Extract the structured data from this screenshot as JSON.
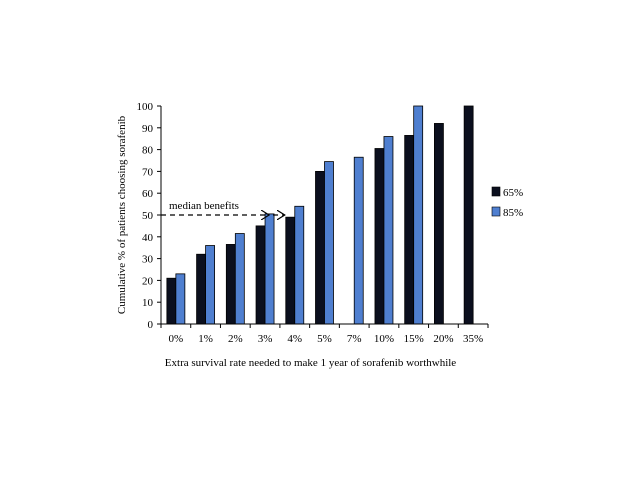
{
  "chart_data": {
    "type": "bar",
    "xlabel": "Extra survival rate needed to make 1 year of sorafenib worthwhile",
    "ylabel": "Cumulative % of patients choosing sorafenib",
    "ylim": [
      0,
      100
    ],
    "yticks": [
      0,
      10,
      20,
      30,
      40,
      50,
      60,
      70,
      80,
      90,
      100
    ],
    "categories": [
      "0%",
      "1%",
      "2%",
      "3%",
      "4%",
      "5%",
      "7%",
      "10%",
      "15%",
      "20%",
      "35%"
    ],
    "series": [
      {
        "name": "65%",
        "color": "#0b0f1e",
        "values": [
          21,
          32,
          36.5,
          45,
          49,
          70,
          null,
          80.5,
          86.5,
          92,
          100
        ]
      },
      {
        "name": "85%",
        "color": "#4f7fd0",
        "values": [
          23,
          36,
          41.5,
          50.5,
          54,
          74.5,
          76.5,
          86,
          100,
          null,
          null
        ]
      }
    ],
    "legend_position": "right",
    "grid": false,
    "annotation": {
      "text": "median benefits",
      "value": 50,
      "arrow_targets": [
        "3%",
        "4%"
      ]
    }
  }
}
